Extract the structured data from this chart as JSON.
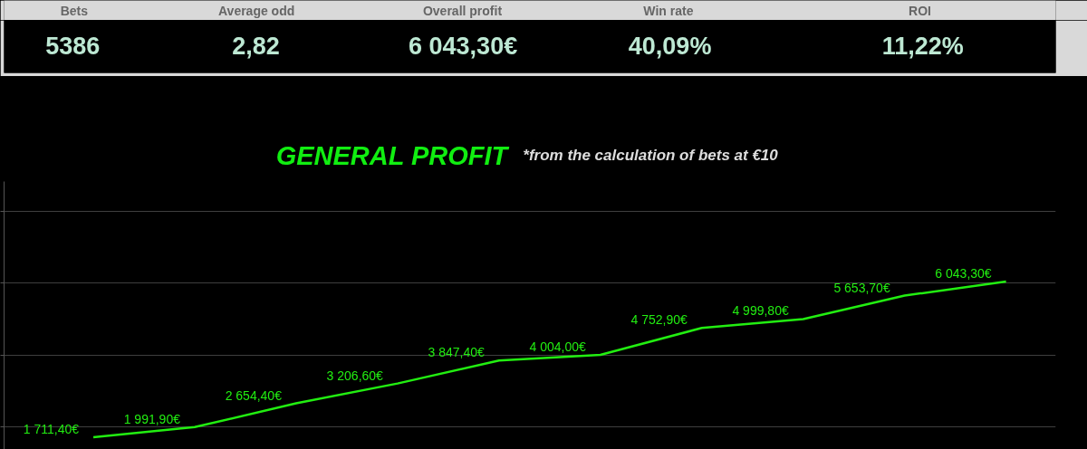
{
  "chart_data": [
    {
      "type": "other",
      "categories": [
        "Bets",
        "Average odd",
        "Overall profit",
        "Win rate",
        "ROI"
      ],
      "annotations": [
        "5386",
        "2,82",
        "6 043,30€",
        "40,09%",
        "11,22%"
      ]
    },
    {
      "type": "line",
      "title": "GENERAL PROFIT",
      "subtitle": "*from the calculation of bets at €10",
      "categories": [
        null,
        null,
        null,
        null,
        null,
        null,
        null,
        null,
        null,
        null
      ],
      "series": [
        {
          "color": "#22ee11",
          "values": [
            1711.4,
            1991.9,
            2654.4,
            3206.6,
            3847.4,
            4004.0,
            4752.9,
            4999.8,
            5653.7,
            6043.3
          ],
          "value_labels": [
            "1 711,40€",
            "1 991,90€",
            "2 654,40€",
            "3 206,60€",
            "3 847,40€",
            "4 004,00€",
            "4 752,90€",
            "4 999,80€",
            "5 653,70€",
            "6 043,30€"
          ]
        }
      ],
      "ylim": [
        1370,
        8830
      ],
      "yticks": [
        {
          "value": 2000,
          "label": null
        },
        {
          "value": 4000,
          "label": null
        },
        {
          "value": 6000,
          "label": null
        },
        {
          "value": 8000,
          "label": null
        }
      ],
      "grid": "y",
      "tick_labels": false
    }
  ]
}
